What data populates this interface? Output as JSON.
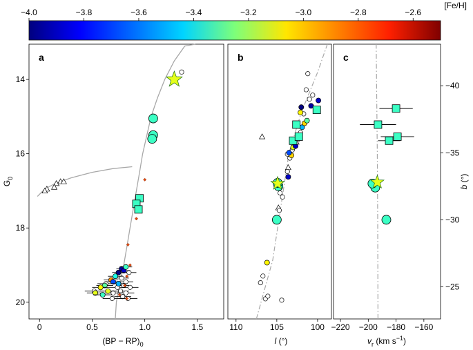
{
  "colorbar": {
    "label": "[Fe/H]",
    "min": -4.0,
    "max": -2.5,
    "ticks": [
      -4.0,
      -3.8,
      -3.6,
      -3.4,
      -3.2,
      -3.0,
      -2.8,
      -2.6
    ],
    "tick_labels": [
      "−4.0",
      "−3.8",
      "−3.6",
      "−3.4",
      "−3.2",
      "−3.0",
      "−2.8",
      "−2.6"
    ]
  },
  "chart_data": [
    {
      "panel": "a",
      "type": "scatter",
      "xlabel": "(BP − RP)",
      "xlabel_sub": "0",
      "ylabel": "G",
      "ylabel_sub": "0",
      "xlim": [
        -0.1,
        1.75
      ],
      "ylim": [
        20.45,
        13.05
      ],
      "y_inverted": true,
      "xticks": [
        0,
        0.5,
        1.0,
        1.5
      ],
      "xtick_labels": [
        "0",
        "0.5",
        "1.0",
        "1.5"
      ],
      "yticks": [
        14,
        16,
        18,
        20
      ],
      "ytick_labels": [
        "14",
        "16",
        "18",
        "20"
      ],
      "isochrone_rgb": [
        [
          0.72,
          20.45
        ],
        [
          0.73,
          20.0
        ],
        [
          0.76,
          19.5
        ],
        [
          0.8,
          19.0
        ],
        [
          0.83,
          18.5
        ],
        [
          0.86,
          18.0
        ],
        [
          0.89,
          17.5
        ],
        [
          0.92,
          17.0
        ],
        [
          0.95,
          16.5
        ],
        [
          0.98,
          16.0
        ],
        [
          1.02,
          15.5
        ],
        [
          1.06,
          15.0
        ],
        [
          1.12,
          14.5
        ],
        [
          1.19,
          14.0
        ],
        [
          1.28,
          13.5
        ],
        [
          1.38,
          13.1
        ],
        [
          1.48,
          13.05
        ]
      ],
      "isochrone_hb": [
        [
          -0.02,
          17.15
        ],
        [
          0.05,
          16.95
        ],
        [
          0.15,
          16.8
        ],
        [
          0.3,
          16.65
        ],
        [
          0.5,
          16.5
        ],
        [
          0.7,
          16.4
        ],
        [
          0.88,
          16.35
        ]
      ],
      "star": {
        "x": 1.28,
        "y": 14.0,
        "feh": -3.1
      },
      "circles_large": [
        {
          "x": 1.08,
          "y": 15.05,
          "feh": -3.35
        },
        {
          "x": 1.08,
          "y": 15.5,
          "feh": -3.35
        },
        {
          "x": 1.07,
          "y": 15.6,
          "feh": -3.35
        }
      ],
      "squares": [
        {
          "x": 0.95,
          "y": 17.2,
          "feh": -3.35
        },
        {
          "x": 0.92,
          "y": 17.35,
          "feh": -3.35
        },
        {
          "x": 0.94,
          "y": 17.5,
          "feh": -3.35
        }
      ],
      "circles_small": [
        {
          "x": 0.78,
          "y": 19.1,
          "feh": -3.95,
          "xerr": 0.05,
          "yerr": 0.05
        },
        {
          "x": 0.8,
          "y": 19.15,
          "feh": -3.9,
          "xerr": 0.06,
          "yerr": 0.05
        },
        {
          "x": 0.75,
          "y": 19.2,
          "feh": -4.0,
          "xerr": 0.06,
          "yerr": 0.05
        },
        {
          "x": 0.82,
          "y": 19.05,
          "feh": -3.35,
          "xerr": 0.06,
          "yerr": 0.05
        },
        {
          "x": 0.72,
          "y": 19.3,
          "feh": -3.4,
          "xerr": 0.07,
          "yerr": 0.05
        },
        {
          "x": 0.68,
          "y": 19.4,
          "feh": -2.9,
          "xerr": 0.07,
          "yerr": 0.05
        },
        {
          "x": 0.7,
          "y": 19.45,
          "feh": -3.7,
          "xerr": 0.07,
          "yerr": 0.05
        },
        {
          "x": 0.75,
          "y": 19.5,
          "feh": -3.55,
          "xerr": 0.08,
          "yerr": 0.06
        },
        {
          "x": 0.62,
          "y": 19.55,
          "feh": -3.3,
          "xerr": 0.08,
          "yerr": 0.06
        },
        {
          "x": 0.58,
          "y": 19.6,
          "feh": -3.05,
          "xerr": 0.08,
          "yerr": 0.06
        },
        {
          "x": 0.65,
          "y": 19.7,
          "feh": -3.1,
          "xerr": 0.08,
          "yerr": 0.06
        },
        {
          "x": 0.53,
          "y": 19.75,
          "feh": -3.1,
          "xerr": 0.08,
          "yerr": 0.06
        },
        {
          "x": 0.6,
          "y": 19.8,
          "feh": -3.35,
          "xerr": 0.09,
          "yerr": 0.06
        }
      ],
      "circles_open": [
        {
          "x": 1.35,
          "y": 13.8
        },
        {
          "x": 0.85,
          "y": 19.2,
          "xerr": 0.07,
          "yerr": 0.05
        },
        {
          "x": 0.78,
          "y": 19.35,
          "xerr": 0.07,
          "yerr": 0.05
        },
        {
          "x": 0.82,
          "y": 19.45,
          "xerr": 0.07,
          "yerr": 0.05
        },
        {
          "x": 0.8,
          "y": 19.55,
          "xerr": 0.07,
          "yerr": 0.05
        },
        {
          "x": 0.86,
          "y": 19.6,
          "xerr": 0.08,
          "yerr": 0.06
        },
        {
          "x": 0.74,
          "y": 19.6,
          "xerr": 0.08,
          "yerr": 0.06
        },
        {
          "x": 0.77,
          "y": 19.7,
          "xerr": 0.08,
          "yerr": 0.06
        },
        {
          "x": 0.82,
          "y": 19.75,
          "xerr": 0.08,
          "yerr": 0.06
        },
        {
          "x": 0.7,
          "y": 19.75,
          "xerr": 0.08,
          "yerr": 0.06
        },
        {
          "x": 0.79,
          "y": 19.85,
          "xerr": 0.08,
          "yerr": 0.06
        },
        {
          "x": 0.69,
          "y": 19.9,
          "xerr": 0.09,
          "yerr": 0.06
        },
        {
          "x": 0.63,
          "y": 19.5,
          "xerr": 0.08,
          "yerr": 0.06
        },
        {
          "x": 0.52,
          "y": 19.7,
          "xerr": 0.09,
          "yerr": 0.06
        },
        {
          "x": 0.84,
          "y": 19.9,
          "xerr": 0.09,
          "yerr": 0.06
        }
      ],
      "triangles_open": [
        {
          "x": 0.07,
          "y": 16.95
        },
        {
          "x": 0.05,
          "y": 17.0
        },
        {
          "x": 0.16,
          "y": 16.8
        },
        {
          "x": 0.2,
          "y": 16.75
        },
        {
          "x": 0.14,
          "y": 16.9
        },
        {
          "x": 0.23,
          "y": 16.75
        }
      ],
      "red_diamonds": [
        {
          "x": 1.0,
          "y": 16.7
        },
        {
          "x": 0.92,
          "y": 17.75
        },
        {
          "x": 0.84,
          "y": 18.45
        },
        {
          "x": 0.86,
          "y": 19.0
        },
        {
          "x": 0.83,
          "y": 19.3
        },
        {
          "x": 0.81,
          "y": 19.55
        },
        {
          "x": 0.76,
          "y": 19.8
        },
        {
          "x": 0.83,
          "y": 19.9
        }
      ]
    },
    {
      "panel": "b",
      "type": "scatter",
      "xlabel": "l",
      "xlabel_unit": " (°)",
      "xlim": [
        111,
        98.3
      ],
      "ylim": [
        -22.6,
        -43.1
      ],
      "xticks": [
        110,
        105,
        100
      ],
      "xtick_labels": [
        "110",
        "105",
        "100"
      ],
      "trend_line": [
        [
          107.5,
          -22.6
        ],
        [
          105.5,
          -27.0
        ],
        [
          104.5,
          -31.0
        ],
        [
          103.5,
          -35.0
        ],
        [
          102.0,
          -38.0
        ],
        [
          100.0,
          -41.0
        ],
        [
          98.8,
          -43.1
        ]
      ],
      "star": {
        "x": 104.9,
        "y": -32.7,
        "feh": -3.1
      },
      "circles_large": [
        {
          "x": 105.0,
          "y": -30.0,
          "feh": -3.35
        },
        {
          "x": 104.8,
          "y": -32.5,
          "feh": -3.35
        },
        {
          "x": 104.9,
          "y": -32.75,
          "feh": -3.35
        }
      ],
      "squares": [
        {
          "x": 103.0,
          "y": -35.9,
          "feh": -3.35
        },
        {
          "x": 102.3,
          "y": -36.2,
          "feh": -3.35
        },
        {
          "x": 102.6,
          "y": -37.1,
          "feh": -3.35
        },
        {
          "x": 100.1,
          "y": -38.2,
          "feh": -3.35
        }
      ],
      "circles_small": [
        {
          "x": 106.2,
          "y": -26.8,
          "feh": -3.05
        },
        {
          "x": 103.6,
          "y": -33.2,
          "feh": -3.9
        },
        {
          "x": 103.2,
          "y": -34.8,
          "feh": -3.0
        },
        {
          "x": 103.5,
          "y": -35.0,
          "feh": -3.7
        },
        {
          "x": 103.0,
          "y": -35.4,
          "feh": -3.1
        },
        {
          "x": 102.7,
          "y": -35.5,
          "feh": -3.9
        },
        {
          "x": 101.9,
          "y": -36.9,
          "feh": -3.55
        },
        {
          "x": 101.6,
          "y": -37.2,
          "feh": -3.0
        },
        {
          "x": 101.3,
          "y": -37.4,
          "feh": -3.3
        },
        {
          "x": 102.1,
          "y": -38.0,
          "feh": -3.05
        },
        {
          "x": 102.0,
          "y": -38.4,
          "feh": -4.0
        },
        {
          "x": 100.8,
          "y": -38.5,
          "feh": -3.95
        },
        {
          "x": 99.9,
          "y": -38.9,
          "feh": -3.9
        }
      ],
      "circles_open": [
        {
          "x": 106.4,
          "y": -24.1
        },
        {
          "x": 106.1,
          "y": -24.3
        },
        {
          "x": 104.4,
          "y": -24.0
        },
        {
          "x": 107.0,
          "y": -25.3
        },
        {
          "x": 106.7,
          "y": -25.8
        },
        {
          "x": 104.7,
          "y": -30.7
        },
        {
          "x": 104.3,
          "y": -31.7
        },
        {
          "x": 104.6,
          "y": -32.0
        },
        {
          "x": 103.7,
          "y": -33.6
        },
        {
          "x": 103.4,
          "y": -34.6
        },
        {
          "x": 103.7,
          "y": -34.9
        },
        {
          "x": 103.1,
          "y": -35.2
        },
        {
          "x": 102.4,
          "y": -36.0
        },
        {
          "x": 102.1,
          "y": -36.5
        },
        {
          "x": 101.7,
          "y": -37.9
        },
        {
          "x": 101.0,
          "y": -39.0
        },
        {
          "x": 100.6,
          "y": -39.3
        },
        {
          "x": 101.4,
          "y": -39.7
        },
        {
          "x": 101.2,
          "y": -40.9
        }
      ],
      "triangles_open": [
        {
          "x": 106.8,
          "y": -36.2
        },
        {
          "x": 104.8,
          "y": -30.9
        },
        {
          "x": 103.6,
          "y": -33.9
        },
        {
          "x": 102.6,
          "y": -35.8
        },
        {
          "x": 102.5,
          "y": -36.1
        }
      ]
    },
    {
      "panel": "c",
      "type": "scatter",
      "xlabel": "v",
      "xlabel_sub": "r",
      "xlabel_unit": " (km s",
      "xlabel_sup": "−1",
      "xlabel_close": ")",
      "ylabel": "b",
      "ylabel_unit": " (°)",
      "xlim": [
        -225,
        -148
      ],
      "ylim": [
        -22.6,
        -43.1
      ],
      "xticks": [
        -220,
        -200,
        -180,
        -160
      ],
      "xtick_labels": [
        "−220",
        "−200",
        "−180",
        "−160"
      ],
      "yticks": [
        -25,
        -30,
        -35,
        -40
      ],
      "ytick_labels": [
        "−25",
        "−30",
        "−35",
        "−40"
      ],
      "trend_line": [
        [
          -193.0,
          -22.6
        ],
        [
          -193.2,
          -30.0
        ],
        [
          -193.5,
          -35.0
        ],
        [
          -194.0,
          -40.0
        ],
        [
          -194.3,
          -43.1
        ]
      ],
      "star": {
        "x": -193.5,
        "y": -32.8,
        "feh": -3.1
      },
      "circles_large": [
        {
          "x": -187.0,
          "y": -30.0,
          "feh": -3.35
        },
        {
          "x": -195.0,
          "y": -32.4,
          "feh": -3.35
        },
        {
          "x": -197.0,
          "y": -32.7,
          "feh": -3.35
        }
      ],
      "squares": [
        {
          "x": -185.0,
          "y": -35.9,
          "feh": -3.35,
          "xerr": 8
        },
        {
          "x": -179.0,
          "y": -36.2,
          "feh": -3.35,
          "xerr": 12
        },
        {
          "x": -193.0,
          "y": -37.1,
          "feh": -3.35,
          "xerr": 13
        },
        {
          "x": -180.0,
          "y": -38.3,
          "feh": -3.35,
          "xerr": 12
        }
      ]
    }
  ]
}
